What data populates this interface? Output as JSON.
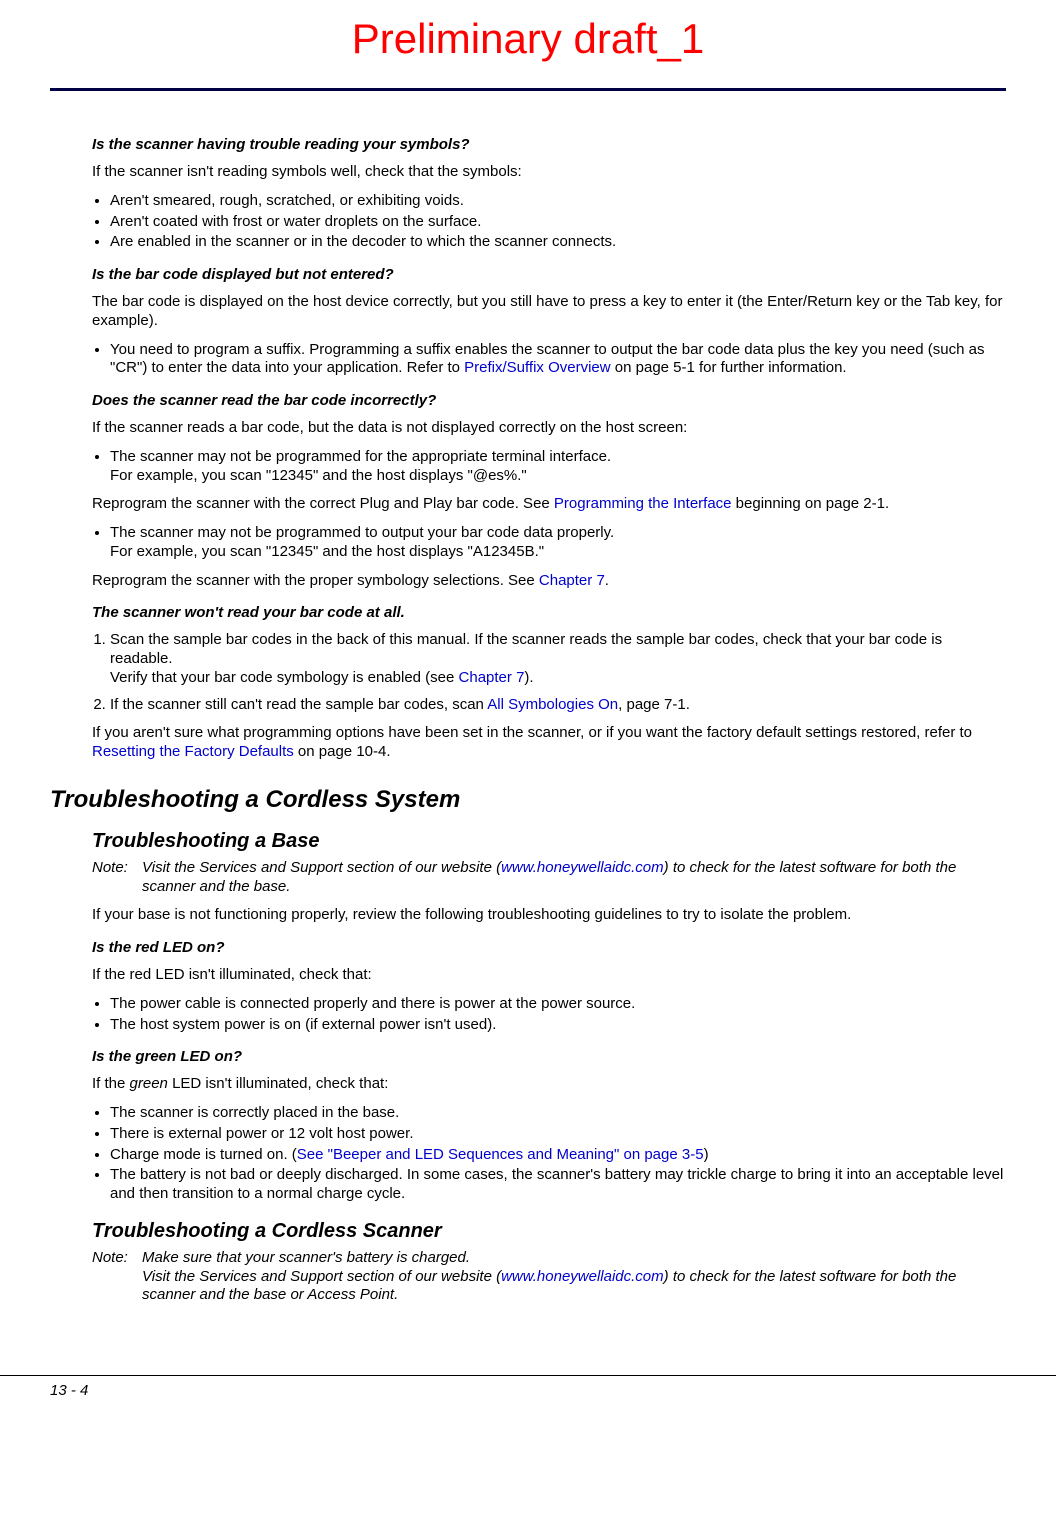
{
  "watermark": "Preliminary draft_1",
  "colors": {
    "link": "#0000cc",
    "watermark": "#ff0000",
    "rule": "#000044"
  },
  "sec1": {
    "q1": "Is the scanner having trouble reading your symbols?",
    "p1": "If the scanner isn't reading symbols well, check that the symbols:",
    "b1": "Aren't smeared, rough, scratched, or exhibiting voids.",
    "b2": "Aren't coated with frost or water droplets on the surface.",
    "b3": "Are enabled in the scanner or in the decoder to which the scanner connects.",
    "q2": "Is the bar code displayed but not entered?",
    "p2": "The bar code is displayed on the host device correctly, but you still have to press a key to enter it (the Enter/Return key or the Tab key, for example).",
    "b4a": "You need to program a suffix.  Programming a suffix enables the scanner to output the bar code data plus the key you need (such as \"CR\") to enter the data into your application.  Refer to ",
    "b4link": "Prefix/Suffix Overview",
    "b4b": " on page 5-1 for further information.",
    "q3": "Does the scanner read the bar code incorrectly?",
    "p3": "If the scanner reads a bar code, but the data is not displayed correctly on the host screen:",
    "b5": "The scanner may not be programmed for the appropriate terminal interface.",
    "b5sub": "For example, you scan \"12345\" and the host displays \"@es%.\"",
    "p4a": "Reprogram the scanner with the correct Plug and Play bar code.  See ",
    "p4link": "Programming the Interface",
    "p4b": " beginning on page 2-1.",
    "b6": "The scanner may not be programmed to output your bar code data properly.",
    "b6sub": "For example, you scan \"12345\" and the host displays \"A12345B.\"",
    "p5a": "Reprogram the scanner with the proper symbology selections.  See ",
    "p5link": "Chapter 7",
    "p5b": ".",
    "q4": "The scanner won't read your bar code at all.",
    "s1a": "Scan the sample bar codes in the back of this manual.  If the scanner reads the sample bar codes, check that your bar code is readable.",
    "s1b": "Verify that your bar code symbology is enabled (see ",
    "s1link": "Chapter 7",
    "s1c": ").",
    "s2a": "If the scanner still can't read the sample bar codes, scan ",
    "s2link": "All Symbologies On",
    "s2b": ", page 7-1.",
    "p6a": "If you aren't sure what programming options have been set in the scanner, or if you want the factory default settings restored, refer to ",
    "p6link": "Resetting the Factory Defaults",
    "p6b": " on page 10-4."
  },
  "h1": "Troubleshooting a Cordless System",
  "h2a": "Troubleshooting a Base",
  "note1": {
    "label": "Note:",
    "a": "Visit the Services and Support section of our website (",
    "link": "www.honeywellaidc.com",
    "b": ") to check for the latest software for both the scanner and the base."
  },
  "sec2": {
    "p1": "If your base is not functioning properly, review the following troubleshooting guidelines to try to isolate the problem.",
    "q1": "Is the red LED on?",
    "p2": "If the red LED isn't illuminated, check that:",
    "b1": "The power cable is connected properly and there is power at the power source.",
    "b2": "The host system power is on (if external power isn't used).",
    "q2": "Is the green LED on?",
    "p3a": "If the ",
    "p3i": "green",
    "p3b": " LED isn't illuminated, check that:",
    "b3": "The scanner is correctly placed in the base.",
    "b4": "There is external power or 12 volt host power.",
    "b5a": "Charge mode is turned on.  (",
    "b5link": "See  \"Beeper and LED Sequences and Meaning\" on page 3-5",
    "b5b": ")",
    "b6": "The battery is not bad or deeply discharged.  In some cases, the scanner's battery may trickle charge to bring it into an acceptable level and then transition to a normal charge cycle."
  },
  "h2b": "Troubleshooting a Cordless Scanner",
  "note2": {
    "label": "Note:",
    "line1": "Make sure that your scanner's battery is charged.",
    "a": "Visit the Services and Support section of our website (",
    "link": "www.honeywellaidc.com",
    "b": ") to check for the latest software for both the scanner and the base or Access Point."
  },
  "pagenum": "13 - 4"
}
